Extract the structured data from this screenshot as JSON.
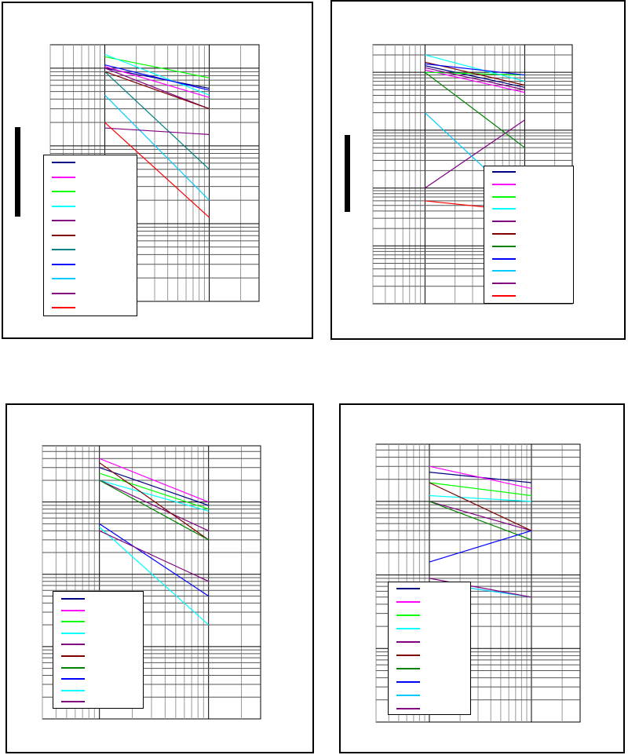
{
  "chart_data": [
    {
      "type": "line",
      "x_scale": "log",
      "y_scale": "log",
      "grid": true,
      "legend_position": "bottom-left",
      "series": [
        {
          "color": "#000080",
          "values": [
            [
              1,
              1.0
            ],
            [
              10,
              0.55
            ]
          ]
        },
        {
          "color": "#FF00FF",
          "values": [
            [
              1,
              1.05
            ],
            [
              10,
              0.42
            ]
          ]
        },
        {
          "color": "#00FF00",
          "values": [
            [
              1,
              1.4
            ],
            [
              10,
              0.75
            ]
          ]
        },
        {
          "color": "#00FFFF",
          "values": [
            [
              1,
              1.5
            ],
            [
              10,
              0.45
            ]
          ]
        },
        {
          "color": "#800080",
          "values": [
            [
              1,
              1.0
            ],
            [
              10,
              0.3
            ]
          ]
        },
        {
          "color": "#800000",
          "values": [
            [
              1,
              0.9
            ],
            [
              10,
              0.3
            ]
          ]
        },
        {
          "color": "#008080",
          "values": [
            [
              1,
              0.9
            ],
            [
              10,
              0.05
            ]
          ]
        },
        {
          "color": "#0000FF",
          "values": [
            [
              1,
              1.1
            ],
            [
              10,
              0.52
            ]
          ]
        },
        {
          "color": "#00CCFF",
          "values": [
            [
              1,
              0.45
            ],
            [
              10,
              0.02
            ]
          ]
        },
        {
          "color": "#800080",
          "values": [
            [
              1,
              0.17
            ],
            [
              10,
              0.14
            ]
          ]
        },
        {
          "color": "#FF0000",
          "values": [
            [
              1,
              0.2
            ],
            [
              10,
              0.012
            ]
          ]
        }
      ]
    },
    {
      "type": "line",
      "x_scale": "log",
      "y_scale": "log",
      "grid": true,
      "legend_position": "bottom-right",
      "series": [
        {
          "color": "#000080",
          "values": [
            [
              1,
              1.3
            ],
            [
              10,
              0.55
            ]
          ]
        },
        {
          "color": "#FF00FF",
          "values": [
            [
              1,
              1.1
            ],
            [
              10,
              0.45
            ]
          ]
        },
        {
          "color": "#00FF00",
          "values": [
            [
              1,
              1.0
            ],
            [
              10,
              0.9
            ]
          ]
        },
        {
          "color": "#00FFFF",
          "values": [
            [
              1,
              2.0
            ],
            [
              10,
              0.7
            ]
          ]
        },
        {
          "color": "#800080",
          "values": [
            [
              1,
              0.01
            ],
            [
              10,
              0.15
            ]
          ]
        },
        {
          "color": "#800000",
          "values": [
            [
              1,
              1.5
            ],
            [
              10,
              0.6
            ]
          ]
        },
        {
          "color": "#008000",
          "values": [
            [
              1,
              1.0
            ],
            [
              10,
              0.05
            ]
          ]
        },
        {
          "color": "#0000FF",
          "values": [
            [
              1,
              1.4
            ],
            [
              10,
              0.9
            ]
          ]
        },
        {
          "color": "#00CCFF",
          "values": [
            [
              1,
              0.2
            ],
            [
              10,
              0.005
            ]
          ]
        },
        {
          "color": "#800080",
          "values": [
            [
              1,
              1.2
            ],
            [
              10,
              0.5
            ]
          ]
        },
        {
          "color": "#FF0000",
          "values": [
            [
              1,
              0.006
            ],
            [
              10,
              0.004
            ]
          ]
        }
      ]
    },
    {
      "type": "line",
      "x_scale": "log",
      "y_scale": "log",
      "grid": true,
      "legend_position": "bottom-left",
      "series": [
        {
          "color": "#000080",
          "values": [
            [
              1,
              3.0
            ],
            [
              10,
              0.9
            ]
          ]
        },
        {
          "color": "#FF00FF",
          "values": [
            [
              1,
              4.0
            ],
            [
              10,
              1.0
            ]
          ]
        },
        {
          "color": "#00FF00",
          "values": [
            [
              1,
              2.5
            ],
            [
              10,
              0.8
            ]
          ]
        },
        {
          "color": "#00FFFF",
          "values": [
            [
              1,
              2.0
            ],
            [
              10,
              0.75
            ]
          ]
        },
        {
          "color": "#800080",
          "values": [
            [
              1,
              2.0
            ],
            [
              10,
              0.4
            ]
          ]
        },
        {
          "color": "#800000",
          "values": [
            [
              1,
              3.5
            ],
            [
              10,
              0.3
            ]
          ]
        },
        {
          "color": "#008000",
          "values": [
            [
              1,
              2.0
            ],
            [
              10,
              0.3
            ]
          ]
        },
        {
          "color": "#0000FF",
          "values": [
            [
              1,
              0.5
            ],
            [
              10,
              0.05
            ]
          ]
        },
        {
          "color": "#00FFFF",
          "values": [
            [
              1,
              0.45
            ],
            [
              10,
              0.02
            ]
          ]
        },
        {
          "color": "#800080",
          "values": [
            [
              1,
              0.4
            ],
            [
              10,
              0.08
            ]
          ]
        }
      ]
    },
    {
      "type": "line",
      "x_scale": "log",
      "y_scale": "log",
      "grid": true,
      "legend_position": "bottom-left",
      "series": [
        {
          "color": "#000080",
          "values": [
            [
              1,
              2.5
            ],
            [
              10,
              1.8
            ]
          ]
        },
        {
          "color": "#FF00FF",
          "values": [
            [
              1,
              3.0
            ],
            [
              10,
              1.5
            ]
          ]
        },
        {
          "color": "#00FF00",
          "values": [
            [
              1,
              1.8
            ],
            [
              10,
              1.2
            ]
          ]
        },
        {
          "color": "#00FFFF",
          "values": [
            [
              1,
              1.2
            ],
            [
              10,
              1.0
            ]
          ]
        },
        {
          "color": "#800080",
          "values": [
            [
              1,
              1.0
            ],
            [
              10,
              0.4
            ]
          ]
        },
        {
          "color": "#800000",
          "values": [
            [
              1,
              1.8
            ],
            [
              10,
              0.4
            ]
          ]
        },
        {
          "color": "#008000",
          "values": [
            [
              1,
              1.0
            ],
            [
              10,
              0.3
            ]
          ]
        },
        {
          "color": "#0000FF",
          "values": [
            [
              1,
              0.15
            ],
            [
              10,
              0.4
            ]
          ]
        },
        {
          "color": "#00CCFF",
          "values": [
            [
              1,
              0.08
            ],
            [
              10,
              0.05
            ]
          ]
        },
        {
          "color": "#800080",
          "values": [
            [
              1,
              0.09
            ],
            [
              10,
              0.05
            ]
          ]
        }
      ]
    }
  ]
}
